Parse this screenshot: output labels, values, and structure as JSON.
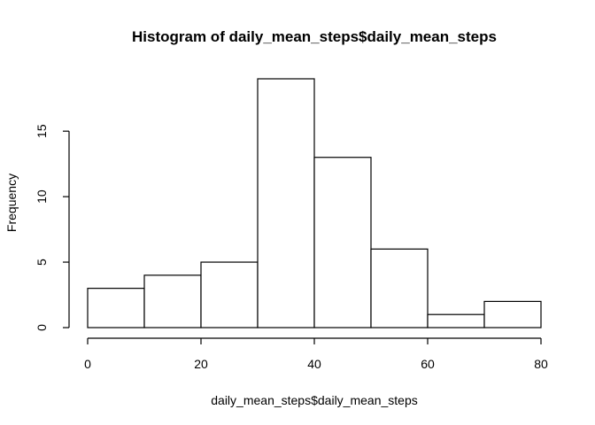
{
  "chart_data": {
    "type": "bar",
    "title": "Histogram of daily_mean_steps$daily_mean_steps",
    "xlabel": "daily_mean_steps$daily_mean_steps",
    "ylabel": "Frequency",
    "bins": [
      {
        "start": 0,
        "end": 10,
        "value": 3
      },
      {
        "start": 10,
        "end": 20,
        "value": 4
      },
      {
        "start": 20,
        "end": 30,
        "value": 5
      },
      {
        "start": 30,
        "end": 40,
        "value": 19
      },
      {
        "start": 40,
        "end": 50,
        "value": 13
      },
      {
        "start": 50,
        "end": 60,
        "value": 6
      },
      {
        "start": 60,
        "end": 70,
        "value": 1
      },
      {
        "start": 70,
        "end": 80,
        "value": 2
      }
    ],
    "xlim": [
      0,
      80
    ],
    "ylim": [
      0,
      19
    ],
    "xticks": [
      0,
      20,
      40,
      60,
      80
    ],
    "yticks": [
      0,
      5,
      10,
      15
    ],
    "xtick_labels": [
      "0",
      "20",
      "40",
      "60",
      "80"
    ],
    "ytick_labels": [
      "0",
      "5",
      "10",
      "15"
    ],
    "grid": false,
    "legend": "none"
  }
}
